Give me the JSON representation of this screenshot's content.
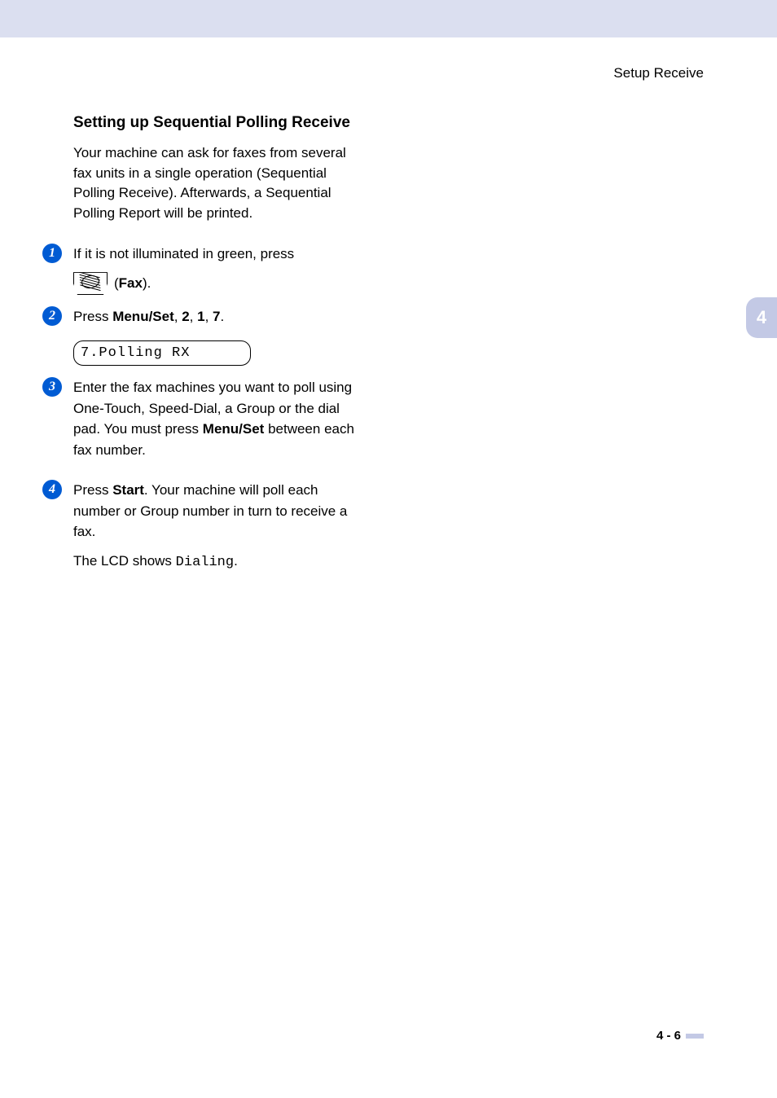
{
  "page": {
    "chapter_name": "Setup Receive",
    "heading": "Setting up Sequential Polling Receive",
    "intro": "Your machine can ask for faxes from several fax units in a single operation (Sequential Polling Receive). Afterwards, a Sequential Polling Report will be printed.",
    "side_tab": "4",
    "page_number": "4 - 6",
    "colors": {
      "top_band": "#dbdff0",
      "side_tab_bg": "#c3c9e5",
      "side_tab_text": "#ffffff",
      "step_circle": "#005bd3",
      "text": "#000000",
      "bg": "#ffffff"
    },
    "fonts": {
      "body_size_pt": 13,
      "heading_size_pt": 14,
      "side_tab_size_pt": 16,
      "lcd_font": "Courier New"
    }
  },
  "steps": [
    {
      "num": "1",
      "text_before_icon": "If it is not illuminated in green, press",
      "after_icon_prefix": " (",
      "bold": "Fax",
      "after_icon_suffix": ")."
    },
    {
      "num": "2",
      "text": "Press ",
      "bold1": "Menu/Set",
      "seq": ", ",
      "bold2": "2",
      "seq2": ", ",
      "bold3": "1",
      "seq3": ", ",
      "bold4": "7",
      "seq4": ".",
      "lcd": "7.Polling RX"
    },
    {
      "num": "3",
      "text_a": "Enter the fax machines you want to poll using One-Touch, Speed-Dial, a Group or the dial pad. You must press ",
      "bold": "Menu/Set",
      "text_b": " between each fax number."
    },
    {
      "num": "4",
      "text_a": "Press ",
      "bold": "Start",
      "text_b": ". Your machine will poll each number or Group number in turn to receive a fax.",
      "text_c_prefix": "The LCD shows ",
      "mono": "Dialing",
      "text_c_suffix": "."
    }
  ]
}
